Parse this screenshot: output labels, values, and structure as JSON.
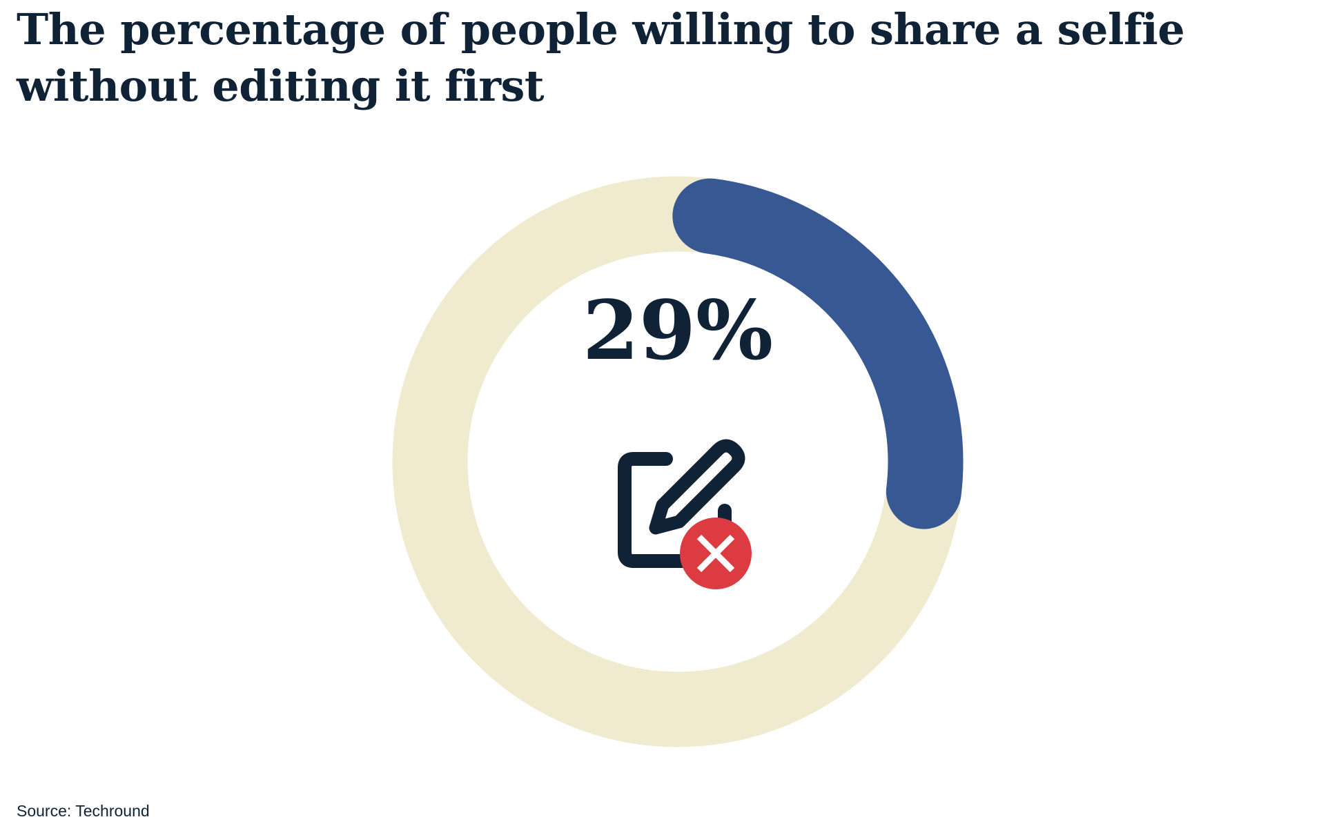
{
  "chart_data": {
    "type": "donut",
    "title": "The percentage of people willing to share a selfie without editing it first",
    "value": 29,
    "value_label": "29%",
    "max": 100,
    "colors": {
      "value": "#385893",
      "remainder": "#f0eacf",
      "text": "#0f2236",
      "icon_badge": "#db3b41"
    },
    "center_icon": "edit-declined-icon"
  },
  "source": "Source: Techround"
}
